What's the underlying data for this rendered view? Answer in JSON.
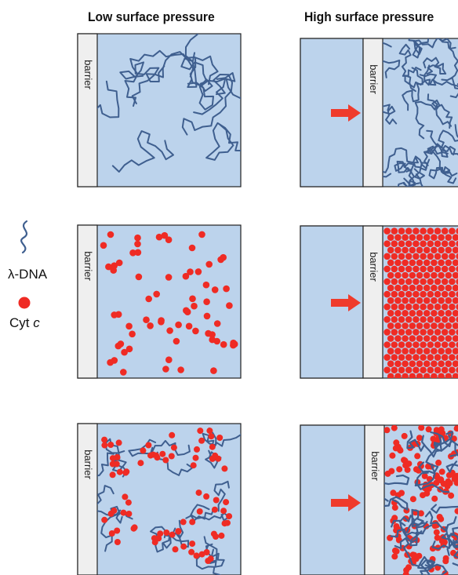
{
  "columns": {
    "low": "Low surface pressure",
    "high": "High surface pressure"
  },
  "barrier_label": "barrier",
  "legend": {
    "dna_prefix": "λ",
    "dna_suffix": "-DNA",
    "cyt_name": "Cyt",
    "cyt_italic": "c"
  },
  "rows": [
    "λ-DNA",
    "Cyt c",
    "λ-DNA + Cyt c"
  ],
  "colors": {
    "trough": "#bcd3ec",
    "barrier": "#efefef",
    "dna": "#3f5f8f",
    "cyt": "#ef2b24",
    "arrow": "#ef3b2c",
    "outline": "#222222"
  }
}
